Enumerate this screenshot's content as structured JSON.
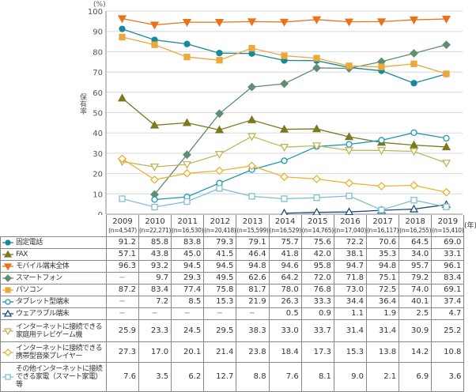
{
  "chart_data": {
    "type": "line",
    "y_unit": "(%)",
    "ylabel": "保有率",
    "x_unit": "(年)",
    "ylim": [
      0,
      100
    ],
    "yticks": [
      0,
      10,
      20,
      30,
      40,
      50,
      60,
      70,
      80,
      90,
      100
    ],
    "grid": true,
    "categories": [
      "2009",
      "2010",
      "2011",
      "2012",
      "2013",
      "2014",
      "2015",
      "2016",
      "2017",
      "2018",
      "2019"
    ],
    "sample_sizes": [
      "(n=4,547)",
      "(n=22,271)",
      "(n=16,530)",
      "(n=20,418)",
      "(n=15,599)",
      "(n=16,529)",
      "(n=14,765)",
      "(n=17,040)",
      "(n=16,117)",
      "(n=16,255)",
      "(n=15,410)"
    ],
    "series": [
      {
        "name": "固定電話",
        "color": "#16899a",
        "marker": "circle",
        "filled": true,
        "values": [
          91.2,
          85.8,
          83.8,
          79.3,
          79.1,
          75.7,
          75.6,
          72.2,
          70.6,
          64.5,
          69.0
        ]
      },
      {
        "name": "FAX",
        "color": "#7a7a1e",
        "marker": "triangle-up",
        "filled": true,
        "values": [
          57.1,
          43.8,
          45.0,
          41.5,
          46.4,
          41.8,
          42.0,
          38.1,
          35.3,
          34.0,
          33.1
        ]
      },
      {
        "name": "モバイル端末全体",
        "color": "#e8731a",
        "marker": "triangle-down",
        "filled": true,
        "values": [
          96.3,
          93.2,
          94.5,
          94.5,
          94.8,
          94.6,
          95.8,
          94.7,
          94.8,
          95.7,
          96.1
        ]
      },
      {
        "name": "スマートフォン",
        "color": "#5f8f72",
        "marker": "diamond",
        "filled": true,
        "values": [
          null,
          9.7,
          29.3,
          49.5,
          62.6,
          64.2,
          72.0,
          71.8,
          75.1,
          79.2,
          83.4
        ]
      },
      {
        "name": "パソコン",
        "color": "#eaa93a",
        "marker": "square",
        "filled": true,
        "values": [
          87.2,
          83.4,
          77.4,
          75.8,
          81.7,
          78.0,
          76.8,
          73.0,
          72.5,
          74.0,
          69.1
        ]
      },
      {
        "name": "タブレット型端末",
        "color": "#1a9ab0",
        "marker": "circle",
        "filled": false,
        "values": [
          null,
          7.2,
          8.5,
          15.3,
          21.9,
          26.3,
          33.3,
          34.4,
          36.4,
          40.1,
          37.4
        ]
      },
      {
        "name": "ウェアラブル端末",
        "color": "#1e4f7a",
        "marker": "triangle-up",
        "filled": false,
        "values": [
          null,
          null,
          null,
          null,
          null,
          0.5,
          0.9,
          1.1,
          1.9,
          2.5,
          4.7
        ]
      },
      {
        "name": "インターネットに接続できる家庭用テレビゲーム機",
        "color": "#c2b55a",
        "marker": "triangle-down",
        "filled": false,
        "values": [
          25.9,
          23.3,
          24.5,
          29.5,
          38.3,
          33.0,
          33.7,
          31.4,
          31.4,
          30.9,
          25.2
        ]
      },
      {
        "name": "インターネットに接続できる携帯型音楽プレイヤー",
        "color": "#f0b030",
        "marker": "diamond",
        "filled": false,
        "values": [
          27.3,
          17.0,
          20.1,
          21.4,
          23.8,
          18.4,
          17.3,
          15.3,
          13.8,
          14.2,
          10.8
        ]
      },
      {
        "name": "その他インターネットに接続できる家電（スマート家電）等",
        "color": "#7fbfd0",
        "marker": "square",
        "filled": false,
        "values": [
          7.6,
          3.5,
          6.2,
          12.7,
          8.8,
          7.6,
          8.1,
          9.0,
          2.1,
          6.9,
          3.6
        ]
      }
    ],
    "missing_label": "−"
  }
}
